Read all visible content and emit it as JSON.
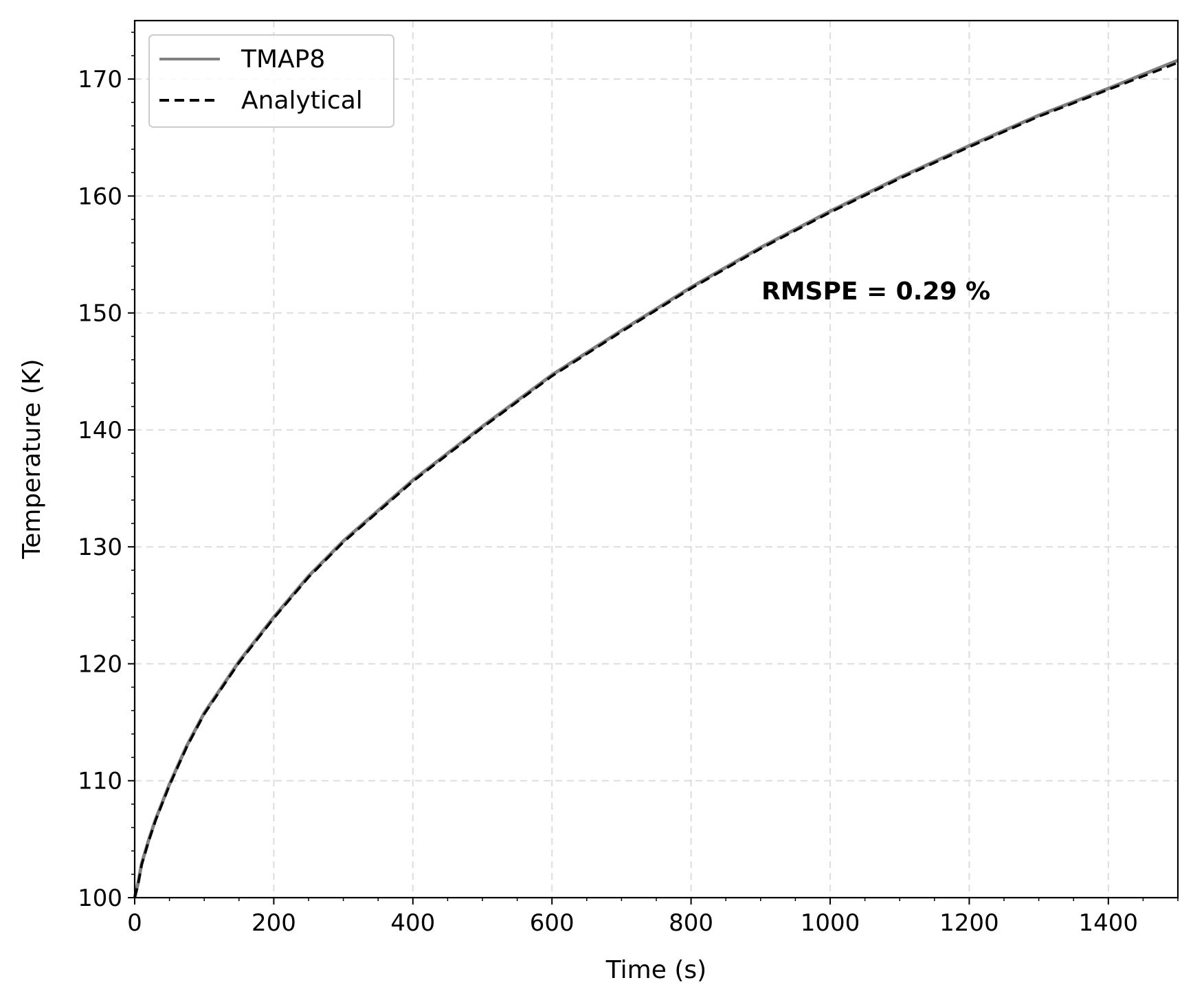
{
  "chart_data": {
    "type": "line",
    "xlabel": "Time (s)",
    "ylabel": "Temperature (K)",
    "xlim": [
      0,
      1500
    ],
    "ylim": [
      100,
      175
    ],
    "xticks": [
      0,
      200,
      400,
      600,
      800,
      1000,
      1200,
      1400
    ],
    "yticks": [
      100,
      110,
      120,
      130,
      140,
      150,
      160,
      170
    ],
    "grid": true,
    "legend_position": "top-left",
    "annotation": "RMSPE = 0.29 %",
    "series": [
      {
        "name": "TMAP8",
        "color": "#808080",
        "style": "solid",
        "x": [
          0,
          5,
          10,
          20,
          30,
          50,
          75,
          100,
          150,
          200,
          250,
          300,
          400,
          500,
          600,
          700,
          800,
          900,
          1000,
          1100,
          1200,
          1300,
          1400,
          1500
        ],
        "y": [
          100,
          101.3,
          102.9,
          104.9,
          106.7,
          109.7,
          113.0,
          115.8,
          120.2,
          124.0,
          127.5,
          130.5,
          135.7,
          140.3,
          144.7,
          148.5,
          152.2,
          155.6,
          158.7,
          161.6,
          164.3,
          166.9,
          169.2,
          171.6
        ]
      },
      {
        "name": "Analytical",
        "color": "#000000",
        "style": "dashed",
        "x": [
          0,
          5,
          10,
          20,
          30,
          50,
          75,
          100,
          150,
          200,
          250,
          300,
          400,
          500,
          600,
          700,
          800,
          900,
          1000,
          1100,
          1200,
          1300,
          1400,
          1500
        ],
        "y": [
          100,
          101.2,
          102.8,
          104.8,
          106.6,
          109.6,
          112.9,
          115.7,
          120.1,
          123.9,
          127.4,
          130.4,
          135.6,
          140.2,
          144.6,
          148.4,
          152.1,
          155.5,
          158.6,
          161.5,
          164.2,
          166.8,
          169.1,
          171.4
        ]
      }
    ]
  }
}
